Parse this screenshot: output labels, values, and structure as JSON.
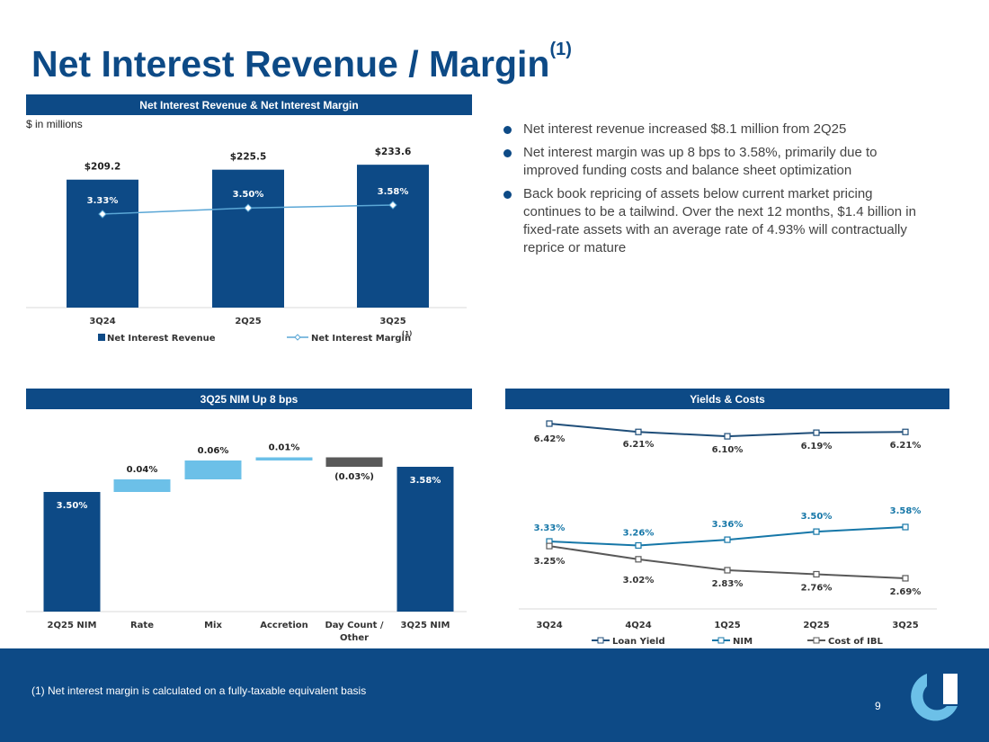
{
  "title": {
    "text": "Net Interest Revenue / Margin",
    "sup": "(1)"
  },
  "panel1": {
    "header": "Net Interest Revenue & Net Interest Margin",
    "unit": "$ in millions"
  },
  "panel2": {
    "header": "3Q25 NIM Up 8 bps"
  },
  "panel3": {
    "header": "Yields & Costs"
  },
  "bullets": [
    "Net interest revenue increased $8.1 million from 2Q25",
    "Net interest margin was up 8 bps to 3.58%, primarily due to improved funding costs and balance sheet optimization",
    "Back book repricing of assets below current market pricing continues to be a tailwind. Over the next 12 months, $1.4 billion in fixed-rate assets with an average rate of 4.93% will contractually reprice or mature"
  ],
  "footer": {
    "footnote": "(1) Net interest margin is calculated on a fully-taxable equivalent basis",
    "page": "9"
  },
  "colors": {
    "navy": "#0d4a86",
    "light_blue": "#6cc0e8",
    "line_blue": "#5ba7d6",
    "teal": "#1677a8",
    "grey": "#595959",
    "logo_light": "#6cc0e8"
  },
  "chart_data": [
    {
      "type": "bar",
      "categories": [
        "3Q24",
        "2Q25",
        "3Q25"
      ],
      "series": [
        {
          "name": "Net Interest Revenue",
          "type": "bar",
          "values": [
            209.2,
            225.5,
            233.6
          ],
          "labels": [
            "$209.2",
            "$225.5",
            "$233.6"
          ]
        },
        {
          "name": "Net Interest Margin",
          "name_sup": "(1)",
          "type": "line",
          "values": [
            3.33,
            3.5,
            3.58
          ],
          "labels": [
            "3.33%",
            "3.50%",
            "3.58%"
          ]
        }
      ],
      "legend": "bottom"
    },
    {
      "type": "bar",
      "subtype": "waterfall",
      "categories": [
        "2Q25 NIM",
        "Rate",
        "Mix",
        "Accretion",
        "Day Count / Other",
        "3Q25 NIM"
      ],
      "category_lines": [
        [
          "2Q25 NIM"
        ],
        [
          "Rate"
        ],
        [
          "Mix"
        ],
        [
          "Accretion"
        ],
        [
          "Day Count /",
          "Other"
        ],
        [
          "3Q25 NIM"
        ]
      ],
      "values": [
        3.5,
        0.04,
        0.06,
        0.01,
        -0.03,
        3.58
      ],
      "kinds": [
        "total",
        "delta",
        "delta",
        "delta",
        "delta",
        "total"
      ],
      "labels": [
        "3.50%",
        "0.04%",
        "0.06%",
        "0.01%",
        "(0.03%)",
        "3.58%"
      ]
    },
    {
      "type": "line",
      "categories": [
        "3Q24",
        "4Q24",
        "1Q25",
        "2Q25",
        "3Q25"
      ],
      "series": [
        {
          "name": "Loan Yield",
          "values": [
            6.42,
            6.21,
            6.1,
            6.19,
            6.21
          ],
          "labels": [
            "6.42%",
            "6.21%",
            "6.10%",
            "6.19%",
            "6.21%"
          ]
        },
        {
          "name": "NIM",
          "values": [
            3.33,
            3.26,
            3.36,
            3.5,
            3.58
          ],
          "labels": [
            "3.33%",
            "3.26%",
            "3.36%",
            "3.50%",
            "3.58%"
          ]
        },
        {
          "name": "Cost of IBL",
          "values": [
            3.25,
            3.02,
            2.83,
            2.76,
            2.69
          ],
          "labels": [
            "3.25%",
            "3.02%",
            "2.83%",
            "2.76%",
            "2.69%"
          ]
        }
      ],
      "legend": "bottom"
    }
  ]
}
